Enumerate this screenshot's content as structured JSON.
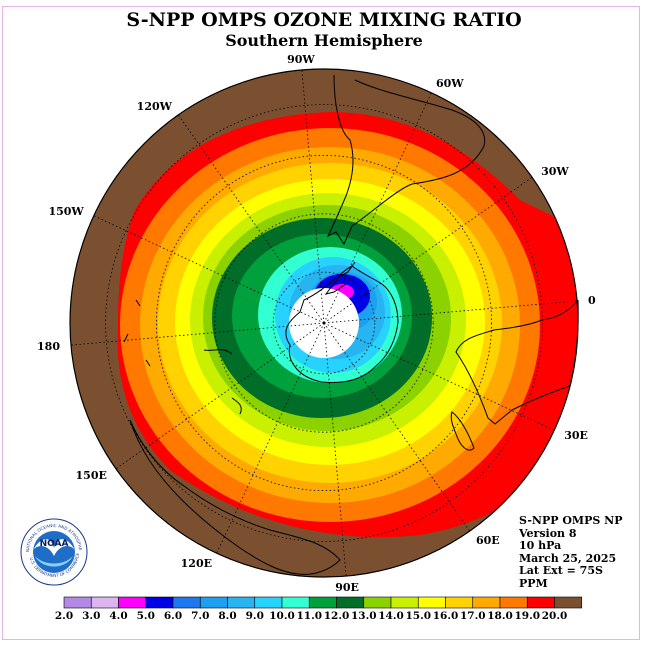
{
  "title": "S-NPP OMPS OZONE MIXING RATIO",
  "subtitle": "Southern Hemisphere",
  "longitude_labels": [
    "90W",
    "60W",
    "30W",
    "0",
    "30E",
    "60E",
    "90E",
    "120E",
    "150E",
    "180",
    "150W",
    "120W"
  ],
  "info": {
    "product": "S-NPP OMPS NP",
    "version": "Version 8",
    "level": "10 hPa",
    "date": "March 25, 2025",
    "lat_ext": "Lat Ext = 75S",
    "units": "PPM"
  },
  "logo": {
    "text": "NOAA",
    "ring_text": "NATIONAL OCEANIC AND ATMOSPHERIC ADMINISTRATION",
    "ring_text_bottom": "U.S. DEPARTMENT OF COMMERCE"
  },
  "colorbar": {
    "labels": [
      "2.0",
      "3.0",
      "4.0",
      "5.0",
      "6.0",
      "7.0",
      "8.0",
      "9.0",
      "10.0",
      "11.0",
      "12.0",
      "13.0",
      "14.0",
      "15.0",
      "16.0",
      "17.0",
      "18.0",
      "19.0",
      "20.0"
    ],
    "colors": [
      "#b28ae6",
      "#dcb4f0",
      "#ff00ff",
      "#0000e6",
      "#1e78f0",
      "#1ea0f0",
      "#28b4f0",
      "#28d2ff",
      "#32ffd2",
      "#00a03c",
      "#006e28",
      "#8cd200",
      "#c8f000",
      "#ffff00",
      "#ffd200",
      "#ffaa00",
      "#ff7800",
      "#ff0000",
      "#7a5030"
    ]
  },
  "map_colors": {
    "outer": "#7a5030",
    "red": "#ff0000",
    "orange_dark": "#ff7800",
    "orange": "#ffaa00",
    "gold": "#ffd200",
    "yellow": "#ffff00",
    "lime": "#c8f000",
    "green_light": "#8cd200",
    "green_dark": "#006e28",
    "green": "#00a03c",
    "aqua": "#32ffd2",
    "cyan": "#28d2ff",
    "sky": "#28b4f0",
    "blue_mid": "#1ea0f0",
    "blue": "#0000e6",
    "magenta": "#ff00ff",
    "nodata": "#ffffff"
  }
}
